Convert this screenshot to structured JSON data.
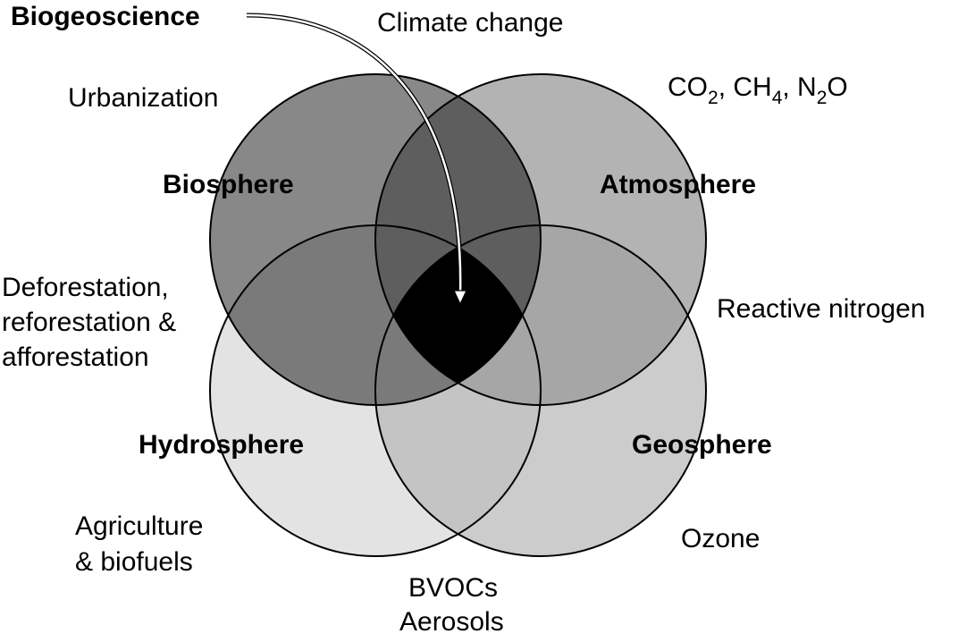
{
  "title": "Biogeoscience",
  "spheres": {
    "biosphere": {
      "label": "Biosphere",
      "color": "#888888"
    },
    "atmosphere": {
      "label": "Atmosphere",
      "color": "#b3b3b3"
    },
    "hydrosphere": {
      "label": "Hydrosphere",
      "color": "#e3e3e3"
    },
    "geosphere": {
      "label": "Geosphere",
      "color": "#cccccc"
    }
  },
  "overlaps": {
    "bio_atm": "#5e5e5e",
    "bio_hydro": "#7a7a7a",
    "atm_geo": "#a6a6a6",
    "hydro_geo": "#c4c4c4",
    "center": "#000000"
  },
  "topics": {
    "climate_change": "Climate change",
    "urbanization": "Urbanization",
    "ghg_co": "CO",
    "ghg_sub_2": "2",
    "ghg_ch": ", CH",
    "ghg_sub_4": "4",
    "ghg_n": ", N",
    "ghg_sub_2b": "2",
    "ghg_o": "O",
    "deforestation_line1": "Deforestation,",
    "deforestation_line2": "reforestation &",
    "deforestation_line3": "afforestation",
    "reactive_nitrogen": "Reactive nitrogen",
    "agriculture_line1": "Agriculture",
    "agriculture_line2": "& biofuels",
    "ozone": "Ozone",
    "bvocs": "BVOCs",
    "aerosols": "Aerosols"
  }
}
